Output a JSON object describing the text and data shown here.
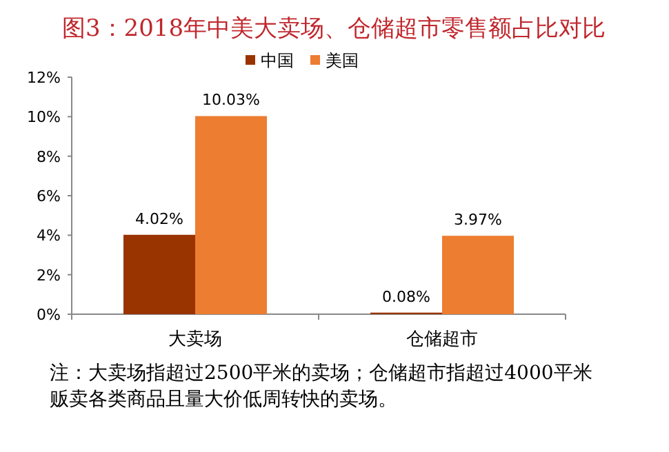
{
  "chart_data": {
    "type": "bar",
    "title": "图3：2018年中美大卖场、仓储超市零售额占比对比",
    "categories": [
      "大卖场",
      "仓储超市"
    ],
    "series": [
      {
        "name": "中国",
        "color": "#993300",
        "values": [
          4.02,
          0.08
        ],
        "value_labels": [
          "4.02%",
          "0.08%"
        ]
      },
      {
        "name": "美国",
        "color": "#ed7d31",
        "values": [
          10.03,
          3.97
        ],
        "value_labels": [
          "10.03%",
          "3.97%"
        ]
      }
    ],
    "ylim": [
      0,
      12
    ],
    "yticks": [
      {
        "value": 0,
        "label": "0%"
      },
      {
        "value": 2,
        "label": "2%"
      },
      {
        "value": 4,
        "label": "4%"
      },
      {
        "value": 6,
        "label": "6%"
      },
      {
        "value": 8,
        "label": "8%"
      },
      {
        "value": 10,
        "label": "10%"
      },
      {
        "value": 12,
        "label": "12%"
      }
    ],
    "legend": "top",
    "annotations": [
      "注：大卖场指超过2500平米的卖场；仓储超市指超过4000平米贩卖各类商品且量大价低周转快的卖场。"
    ]
  }
}
